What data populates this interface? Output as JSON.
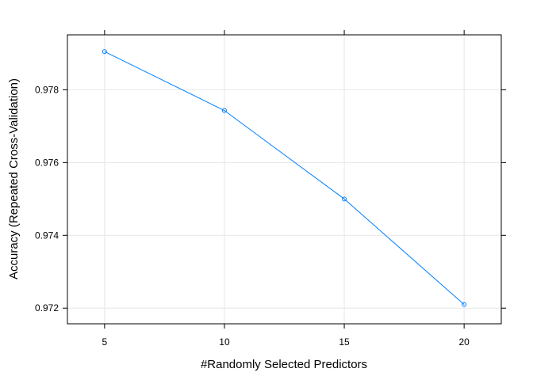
{
  "chart_data": {
    "type": "line",
    "title": "",
    "xlabel": "#Randomly Selected Predictors",
    "ylabel": "Accuracy (Repeated Cross-Validation)",
    "xlim": [
      3.45,
      21.55
    ],
    "ylim": [
      0.97157,
      0.97951
    ],
    "x_ticks": [
      5,
      10,
      15,
      20
    ],
    "x_tick_labels": [
      "5",
      "10",
      "15",
      "20"
    ],
    "y_ticks": [
      0.972,
      0.974,
      0.976,
      0.978
    ],
    "y_tick_labels": [
      "0.972",
      "0.974",
      "0.976",
      "0.978"
    ],
    "grid": true,
    "legend": "none",
    "series": [
      {
        "color": "#0080ff",
        "marker": "open-circle",
        "x": [
          5,
          10,
          15,
          20
        ],
        "values": [
          0.97905,
          0.97743,
          0.975,
          0.9721
        ]
      }
    ]
  }
}
